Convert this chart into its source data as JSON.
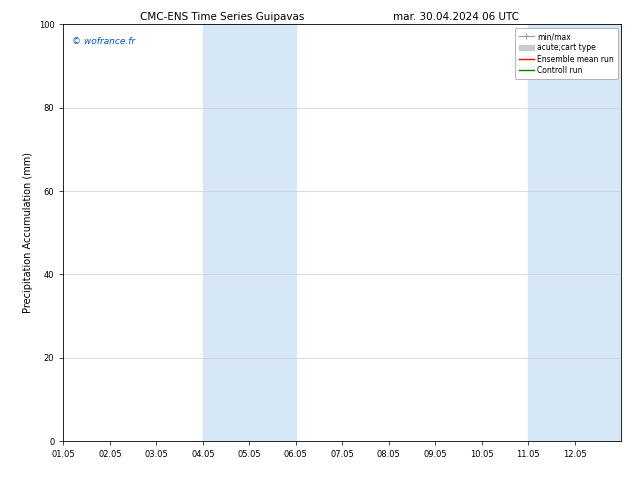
{
  "title_left": "CMC-ENS Time Series Guipavas",
  "title_right": "mar. 30.04.2024 06 UTC",
  "ylabel": "Precipitation Accumulation (mm)",
  "watermark": "© wofrance.fr",
  "xlim": [
    0,
    12
  ],
  "ylim": [
    0,
    100
  ],
  "yticks": [
    0,
    20,
    40,
    60,
    80,
    100
  ],
  "xtick_labels": [
    "01.05",
    "02.05",
    "03.05",
    "04.05",
    "05.05",
    "06.05",
    "07.05",
    "08.05",
    "09.05",
    "10.05",
    "11.05",
    "12.05"
  ],
  "shaded_regions": [
    {
      "x_start": 3,
      "x_end": 5,
      "color": "#d6e8f7"
    },
    {
      "x_start": 10,
      "x_end": 12,
      "color": "#d6e8f7"
    }
  ],
  "legend_items": [
    {
      "label": "min/max",
      "color": "#aaaaaa",
      "lw": 1.0
    },
    {
      "label": "acute;cart type",
      "color": "#cccccc",
      "lw": 6
    },
    {
      "label": "Ensemble mean run",
      "color": "red",
      "lw": 1.0
    },
    {
      "label": "Controll run",
      "color": "green",
      "lw": 1.0
    }
  ],
  "background_color": "#ffffff",
  "spine_color": "#000000",
  "grid_color": "#cccccc",
  "watermark_color": "#0055cc",
  "title_fontsize": 7.5,
  "label_fontsize": 7,
  "tick_fontsize": 6,
  "watermark_fontsize": 6.5,
  "legend_fontsize": 5.5
}
